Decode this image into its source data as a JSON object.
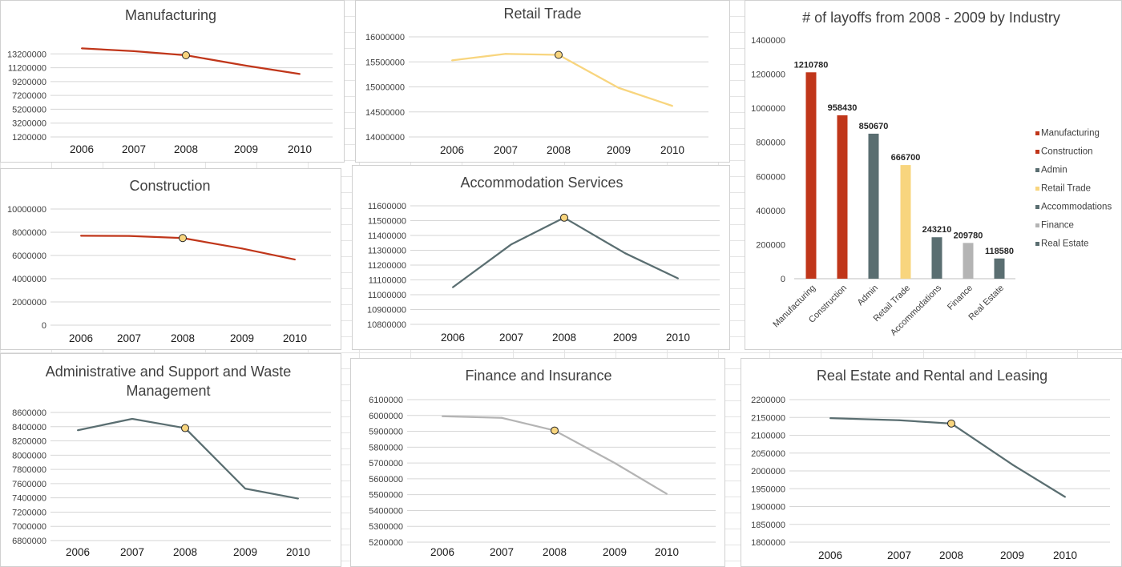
{
  "colors": {
    "rust": "#c0361a",
    "yellow": "#f8d57e",
    "slate": "#5a6e71",
    "gray": "#b4b4b4",
    "marker_fill": "#f8d57e",
    "marker_stroke": "#262626"
  },
  "chart_data": [
    {
      "id": "manufacturing",
      "type": "line",
      "title": "Manufacturing",
      "x": [
        "2006",
        "2007",
        "2008",
        "2009",
        "2010"
      ],
      "values": [
        14000000,
        13600000,
        13000000,
        11500000,
        10300000
      ],
      "ylim": [
        1200000,
        15200000
      ],
      "yticks": [
        13200000,
        11200000,
        9200000,
        7200000,
        5200000,
        3200000,
        1200000
      ],
      "color": "rust",
      "highlight_index": 2
    },
    {
      "id": "retail",
      "type": "line",
      "title": "Retail Trade",
      "x": [
        "2006",
        "2007",
        "2008",
        "2009",
        "2010"
      ],
      "values": [
        15530000,
        15660000,
        15640000,
        14980000,
        14620000
      ],
      "ylim": [
        14000000,
        16000000
      ],
      "yticks": [
        16000000,
        15500000,
        15000000,
        14500000,
        14000000
      ],
      "color": "yellow",
      "highlight_index": 2
    },
    {
      "id": "construction",
      "type": "line",
      "title": "Construction",
      "x": [
        "2006",
        "2007",
        "2008",
        "2009",
        "2010"
      ],
      "values": [
        7700000,
        7680000,
        7500000,
        6600000,
        5650000
      ],
      "ylim": [
        0,
        10000000
      ],
      "yticks": [
        10000000,
        8000000,
        6000000,
        4000000,
        2000000,
        0
      ],
      "color": "rust",
      "highlight_index": 2
    },
    {
      "id": "accommodation",
      "type": "line",
      "title": "Accommodation Services",
      "x": [
        "2006",
        "2007",
        "2008",
        "2009",
        "2010"
      ],
      "values": [
        11050000,
        11340000,
        11520000,
        11280000,
        11110000
      ],
      "ylim": [
        10800000,
        11600000
      ],
      "yticks": [
        11600000,
        11500000,
        11400000,
        11300000,
        11200000,
        11100000,
        11000000,
        10900000,
        10800000
      ],
      "color": "slate",
      "highlight_index": 2
    },
    {
      "id": "admin",
      "type": "line",
      "title": [
        "Administrative and Support and Waste",
        "Management"
      ],
      "x": [
        "2006",
        "2007",
        "2008",
        "2009",
        "2010"
      ],
      "values": [
        8350000,
        8510000,
        8380000,
        7530000,
        7390000
      ],
      "ylim": [
        6800000,
        8600000
      ],
      "yticks": [
        8600000,
        8400000,
        8200000,
        8000000,
        7800000,
        7600000,
        7400000,
        7200000,
        7000000,
        6800000
      ],
      "color": "slate",
      "highlight_index": 2
    },
    {
      "id": "finance",
      "type": "line",
      "title": "Finance and Insurance",
      "x": [
        "2006",
        "2007",
        "2008",
        "2009",
        "2010"
      ],
      "values": [
        5995000,
        5985000,
        5905000,
        5700000,
        5505000
      ],
      "ylim": [
        5200000,
        6100000
      ],
      "yticks": [
        6100000,
        6000000,
        5900000,
        5800000,
        5700000,
        5600000,
        5500000,
        5400000,
        5300000,
        5200000
      ],
      "color": "gray",
      "highlight_index": 2
    },
    {
      "id": "realestate",
      "type": "line",
      "title": "Real Estate and Rental and Leasing",
      "x": [
        "2006",
        "2007",
        "2008",
        "2009",
        "2010"
      ],
      "values": [
        2148000,
        2142000,
        2133000,
        2018000,
        1927000
      ],
      "ylim": [
        1800000,
        2200000
      ],
      "yticks": [
        2200000,
        2150000,
        2100000,
        2050000,
        2000000,
        1950000,
        1900000,
        1850000,
        1800000
      ],
      "color": "slate",
      "highlight_index": 2
    },
    {
      "id": "layoffs",
      "type": "bar",
      "title": "# of layoffs from 2008 - 2009 by Industry",
      "categories": [
        "Manufacturing",
        "Construction",
        "Admin",
        "Retail Trade",
        "Accommodations",
        "Finance",
        "Real Estate"
      ],
      "values": [
        1210780,
        958430,
        850670,
        666700,
        243210,
        209780,
        118580
      ],
      "data_labels": [
        "1210780",
        "958430",
        "850670",
        "666700",
        "243210",
        "209780",
        "118580"
      ],
      "bar_colors": [
        "rust",
        "rust",
        "slate",
        "yellow",
        "slate",
        "gray",
        "slate"
      ],
      "ylim": [
        0,
        1400000
      ],
      "yticks": [
        1400000,
        1200000,
        1000000,
        800000,
        600000,
        400000,
        200000,
        0
      ],
      "legend": [
        "Manufacturing",
        "Construction",
        "Admin",
        "Retail Trade",
        "Accommodations",
        "Finance",
        "Real Estate"
      ],
      "legend_position": "right"
    }
  ]
}
